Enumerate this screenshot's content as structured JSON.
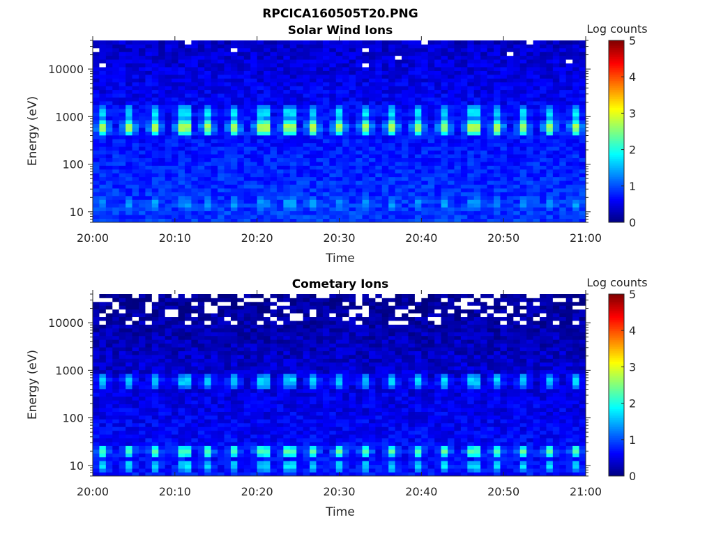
{
  "figure_title": "RPCICA160505T20.PNG",
  "chart_data": [
    {
      "type": "heatmap",
      "title": "Solar Wind Ions",
      "xlabel": "Time",
      "ylabel": "Energy (eV)",
      "xticks": [
        "20:00",
        "20:10",
        "20:20",
        "20:30",
        "20:40",
        "20:50",
        "21:00"
      ],
      "xlim_minutes": [
        0,
        60
      ],
      "yscale": "log",
      "ylim": [
        6,
        40000
      ],
      "yticks": [
        "10",
        "100",
        "1000",
        "10000"
      ],
      "colorbar": {
        "label": "Log counts",
        "range": [
          0,
          5
        ],
        "ticks": [
          "0",
          "1",
          "2",
          "3",
          "4",
          "5"
        ],
        "colormap": "jet"
      },
      "background_log_counts": {
        "low_energy": 0.9,
        "high_energy": 0.35
      },
      "pulse_times_minutes": [
        1.4,
        4.6,
        7.8,
        11.0,
        14.2,
        17.4,
        20.6,
        23.8,
        27.0,
        30.2,
        33.4,
        36.6,
        39.8,
        43.0,
        46.2,
        49.4,
        52.6,
        55.8,
        59.0
      ],
      "bands": [
        {
          "energy_eV": 600,
          "peak_log_counts": 2.9
        },
        {
          "energy_eV": 1200,
          "peak_log_counts": 1.9
        },
        {
          "energy_eV": 15,
          "peak_log_counts": 1.5
        }
      ],
      "no_data_fraction_above_10keV": 0.01
    },
    {
      "type": "heatmap",
      "title": "Cometary Ions",
      "xlabel": "Time",
      "ylabel": "Energy (eV)",
      "xticks": [
        "20:00",
        "20:10",
        "20:20",
        "20:30",
        "20:40",
        "20:50",
        "21:00"
      ],
      "xlim_minutes": [
        0,
        60
      ],
      "yscale": "log",
      "ylim": [
        6,
        40000
      ],
      "yticks": [
        "10",
        "100",
        "1000",
        "10000"
      ],
      "colorbar": {
        "label": "Log counts",
        "range": [
          0,
          5
        ],
        "ticks": [
          "0",
          "1",
          "2",
          "3",
          "4",
          "5"
        ],
        "colormap": "jet"
      },
      "background_log_counts": {
        "low_energy": 0.7,
        "high_energy": 0.08
      },
      "pulse_times_minutes": [
        1.4,
        4.6,
        7.8,
        11.0,
        14.2,
        17.4,
        20.6,
        23.8,
        27.0,
        30.2,
        33.4,
        36.6,
        39.8,
        43.0,
        46.2,
        49.4,
        52.6,
        55.8,
        59.0
      ],
      "bands": [
        {
          "energy_eV": 600,
          "peak_log_counts": 1.8
        },
        {
          "energy_eV": 20,
          "peak_log_counts": 2.3
        },
        {
          "energy_eV": 10,
          "peak_log_counts": 1.8
        }
      ],
      "no_data_fraction_above_10keV": 0.22
    }
  ]
}
